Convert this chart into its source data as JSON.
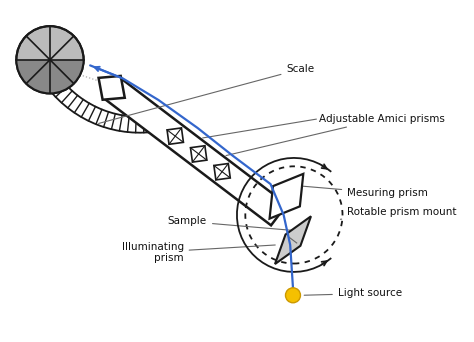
{
  "bg_color": "#ffffff",
  "lc": "#1a1a1a",
  "bc": "#3366cc",
  "yellow": "#f5c000",
  "gray1": "#999999",
  "gray2": "#cccccc",
  "labels": {
    "scale": "Scale",
    "amici": "Adjustable Amici prisms",
    "measuring": "Mesuring prism",
    "rotable": "Rotable prism mount",
    "sample": "Sample",
    "illuminating": "Illuminating\nprism",
    "light": "Light source"
  },
  "figsize": [
    4.74,
    3.42
  ],
  "dpi": 100
}
